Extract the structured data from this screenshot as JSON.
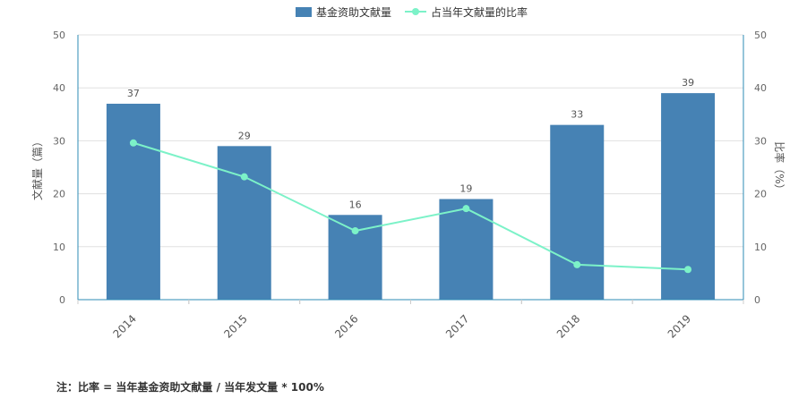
{
  "chart_data": {
    "type": "bar",
    "categories": [
      "2014",
      "2015",
      "2016",
      "2017",
      "2018",
      "2019"
    ],
    "series": [
      {
        "name": "基金资助文献量",
        "type": "bar",
        "axis": "left",
        "color": "#4682b4",
        "values": [
          37,
          29,
          16,
          19,
          33,
          39
        ]
      },
      {
        "name": "占当年文献量的比率",
        "type": "line",
        "axis": "right",
        "color": "#7cf2c8",
        "values": [
          29.6,
          23.2,
          13,
          17.2,
          6.6,
          5.7
        ]
      }
    ],
    "ylabel": "文献量（篇）",
    "y2label": "比率（%）",
    "ylim": [
      0,
      50
    ],
    "y2lim": [
      0,
      50
    ],
    "yticks": [
      "0",
      "10",
      "20",
      "30",
      "40",
      "50"
    ],
    "y2ticks": [
      "0",
      "10",
      "20",
      "30",
      "40",
      "50"
    ],
    "data_labels": [
      "37",
      "29",
      "16",
      "19",
      "33",
      "39"
    ],
    "legend_position": "top-center",
    "grid": true,
    "note": "注：比率 = 当年基金资助文献量 / 当年发文量 * 100%"
  }
}
